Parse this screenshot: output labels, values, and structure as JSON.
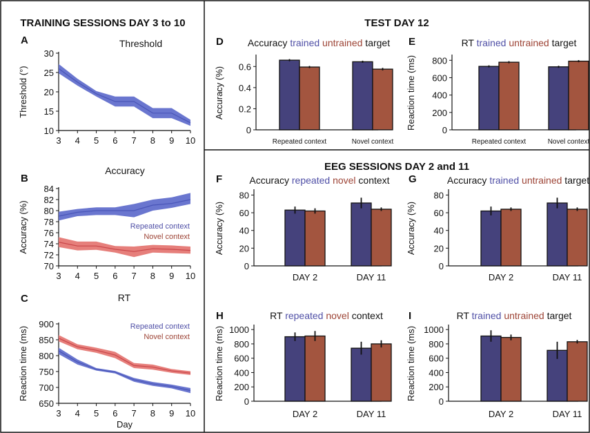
{
  "colors": {
    "blue_band": "#6a76cf",
    "blue_line": "#4a56b8",
    "red_band": "#e67f7b",
    "red_line": "#c9464a",
    "bar_blue": "#45427c",
    "bar_red": "#a3553f",
    "text_blue": "#4f4fa6",
    "text_red": "#9d4436",
    "border": "#111111"
  },
  "headers": {
    "training": "TRAINING SESSIONS DAY 3 to 10",
    "test": "TEST DAY 12",
    "eeg": "EEG SESSIONS DAY 2 and 11"
  },
  "chart_data": [
    {
      "panel": "A",
      "type": "area",
      "title": "Threshold",
      "xlabel": "",
      "ylabel": "Threshold (°)",
      "x": [
        3,
        4,
        5,
        6,
        7,
        8,
        9,
        10
      ],
      "xlim": [
        3,
        10
      ],
      "ylim": [
        10,
        30
      ],
      "yticks": [
        10,
        15,
        20,
        25,
        30
      ],
      "series": [
        {
          "color": "blue",
          "mean": [
            26,
            22.5,
            19.5,
            17.5,
            17.5,
            14.5,
            14.5,
            12
          ],
          "lower": [
            24.8,
            21.6,
            18.8,
            16.2,
            16.2,
            13.2,
            13.2,
            11.2
          ],
          "upper": [
            27.2,
            23.4,
            20.2,
            18.8,
            18.8,
            15.8,
            15.8,
            12.8
          ]
        }
      ]
    },
    {
      "panel": "B",
      "type": "area",
      "title": "Accuracy",
      "xlabel": "",
      "ylabel": "Accuracy (%)",
      "x": [
        3,
        4,
        5,
        6,
        7,
        8,
        9,
        10
      ],
      "xlim": [
        3,
        10
      ],
      "ylim": [
        70,
        84
      ],
      "yticks": [
        70,
        72,
        74,
        76,
        78,
        80,
        82,
        84
      ],
      "legend": [
        "Repeated context",
        "Novel context"
      ],
      "series": [
        {
          "name": "Repeated context",
          "color": "blue",
          "mean": [
            79,
            79.7,
            80,
            80,
            80,
            81,
            81.3,
            82
          ],
          "lower": [
            78.2,
            79,
            79.2,
            79.2,
            78.8,
            80,
            80.5,
            81.2
          ],
          "upper": [
            79.8,
            80.3,
            80.6,
            80.6,
            81.2,
            82,
            82.4,
            83.2
          ]
        },
        {
          "name": "Novel context",
          "color": "red",
          "mean": [
            74.3,
            73.6,
            73.6,
            73,
            72.6,
            73.1,
            73,
            72.8
          ],
          "lower": [
            73.4,
            72.8,
            72.9,
            72.4,
            71.6,
            72.4,
            72.3,
            72.2
          ],
          "upper": [
            75.2,
            74.4,
            74.4,
            73.6,
            73.5,
            73.8,
            73.7,
            73.5
          ]
        }
      ]
    },
    {
      "panel": "C",
      "type": "area",
      "title": "RT",
      "xlabel": "Day",
      "ylabel": "Reaction time (ms)",
      "x": [
        3,
        4,
        5,
        6,
        7,
        8,
        9,
        10
      ],
      "xlim": [
        3,
        10
      ],
      "ylim": [
        650,
        900
      ],
      "yticks": [
        650,
        700,
        750,
        800,
        850,
        900
      ],
      "legend": [
        "Repeated context",
        "Novel context"
      ],
      "series": [
        {
          "name": "Repeated context",
          "color": "blue",
          "mean": [
            815,
            780,
            757,
            748,
            724,
            711,
            703,
            690
          ],
          "lower": [
            805,
            772,
            753,
            744,
            718,
            705,
            697,
            682
          ],
          "upper": [
            825,
            788,
            761,
            752,
            730,
            717,
            709,
            698
          ]
        },
        {
          "name": "Novel context",
          "color": "red",
          "mean": [
            855,
            828,
            817,
            802,
            769,
            764,
            752,
            745
          ],
          "lower": [
            845,
            820,
            809,
            792,
            761,
            756,
            746,
            739
          ],
          "upper": [
            865,
            836,
            825,
            812,
            777,
            772,
            758,
            751
          ]
        }
      ]
    },
    {
      "panel": "D",
      "type": "bar",
      "title_parts": [
        "Accuracy ",
        "trained",
        " ",
        "untrained",
        " target"
      ],
      "ylabel": "Accuracy (%)",
      "categories": [
        "Repeated context",
        "Novel context"
      ],
      "ylim": [
        0,
        0.7
      ],
      "yticks": [
        0,
        0.2,
        0.4,
        0.6
      ],
      "ytick_labels": [
        "0",
        "0.2",
        "0.4",
        "0.6"
      ],
      "series": [
        {
          "color": "blue",
          "values": [
            0.66,
            0.645
          ],
          "err": [
            0.01,
            0.01
          ]
        },
        {
          "color": "red",
          "values": [
            0.595,
            0.575
          ],
          "err": [
            0.01,
            0.012
          ]
        }
      ]
    },
    {
      "panel": "E",
      "type": "bar",
      "title_parts": [
        "RT ",
        "trained",
        " ",
        "untrained",
        " target"
      ],
      "ylabel": "Reaction time (ms)",
      "categories": [
        "Repeated context",
        "Novel context"
      ],
      "ylim": [
        0,
        850
      ],
      "yticks": [
        0,
        200,
        400,
        600,
        800
      ],
      "series": [
        {
          "color": "blue",
          "values": [
            730,
            725
          ],
          "err": [
            12,
            12
          ]
        },
        {
          "color": "red",
          "values": [
            778,
            790
          ],
          "err": [
            12,
            12
          ]
        }
      ]
    },
    {
      "panel": "F",
      "type": "bar",
      "title_parts": [
        "Accuracy ",
        "repeated",
        " ",
        "novel",
        " context"
      ],
      "ylabel": "Accuracy (%)",
      "categories": [
        "DAY 2",
        "DAY 11"
      ],
      "ylim": [
        0,
        85
      ],
      "yticks": [
        0,
        20,
        40,
        60,
        80
      ],
      "series": [
        {
          "color": "blue",
          "values": [
            63,
            71
          ],
          "err": [
            4,
            6
          ]
        },
        {
          "color": "red",
          "values": [
            62,
            64
          ],
          "err": [
            3,
            2
          ]
        }
      ]
    },
    {
      "panel": "G",
      "type": "bar",
      "title_parts": [
        "Accuracy ",
        "trained",
        " ",
        "untrained",
        " target"
      ],
      "ylabel": "Accuracy (%)",
      "categories": [
        "DAY 2",
        "DAY 11"
      ],
      "ylim": [
        0,
        85
      ],
      "yticks": [
        0,
        20,
        40,
        60,
        80
      ],
      "series": [
        {
          "color": "blue",
          "values": [
            62,
            71
          ],
          "err": [
            5,
            6
          ]
        },
        {
          "color": "red",
          "values": [
            64,
            64
          ],
          "err": [
            2,
            2
          ]
        }
      ]
    },
    {
      "panel": "H",
      "type": "bar",
      "title_parts": [
        "RT ",
        "repeated",
        " ",
        "novel",
        " context"
      ],
      "ylabel": "Reaction time (ms)",
      "categories": [
        "DAY 2",
        "DAY 11"
      ],
      "ylim": [
        0,
        1050
      ],
      "yticks": [
        0,
        200,
        400,
        600,
        800,
        1000
      ],
      "series": [
        {
          "color": "blue",
          "values": [
            900,
            740
          ],
          "err": [
            60,
            90
          ]
        },
        {
          "color": "red",
          "values": [
            910,
            800
          ],
          "err": [
            70,
            50
          ]
        }
      ]
    },
    {
      "panel": "I",
      "type": "bar",
      "title_parts": [
        "RT ",
        "trained",
        " ",
        "untrained",
        " target"
      ],
      "ylabel": "Reaction time (ms)",
      "categories": [
        "DAY 2",
        "DAY 11"
      ],
      "ylim": [
        0,
        1050
      ],
      "yticks": [
        0,
        200,
        400,
        600,
        800,
        1000
      ],
      "series": [
        {
          "color": "blue",
          "values": [
            910,
            710
          ],
          "err": [
            80,
            120
          ]
        },
        {
          "color": "red",
          "values": [
            890,
            830
          ],
          "err": [
            40,
            25
          ]
        }
      ]
    }
  ]
}
